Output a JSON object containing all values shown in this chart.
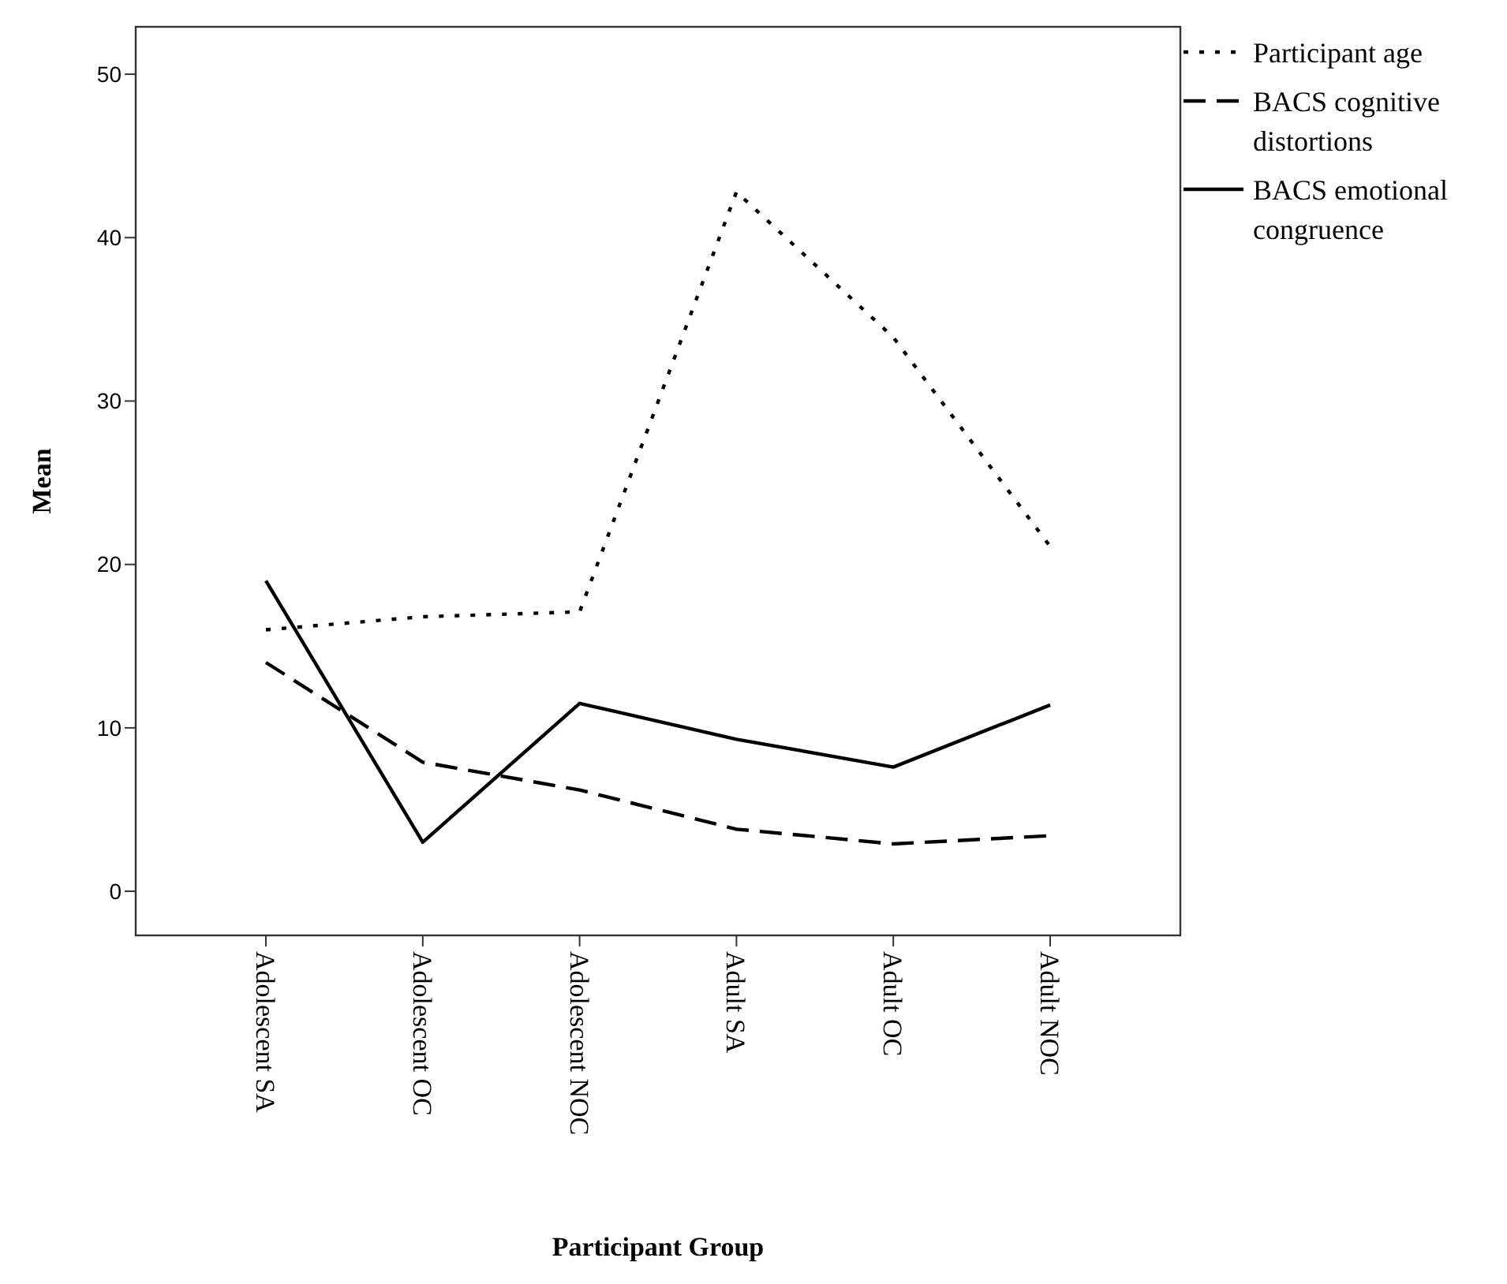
{
  "chart_data": {
    "type": "line",
    "xlabel": "Participant Group",
    "ylabel": "Mean",
    "categories": [
      "Adolescent SA",
      "Adolescent OC",
      "Adolescent NOC",
      "Adult SA",
      "Adult OC",
      "Adult NOC"
    ],
    "series": [
      {
        "name": "Participant age",
        "color": "#000000",
        "line_style": "dotted",
        "values": [
          16.0,
          16.8,
          17.1,
          42.8,
          33.9,
          21.1
        ]
      },
      {
        "name": "BACS cognitive distortions",
        "color": "#000000",
        "line_style": "dashed",
        "values": [
          14.0,
          7.9,
          6.2,
          3.8,
          2.9,
          3.4
        ]
      },
      {
        "name": "BACS emotional congruence",
        "color": "#000000",
        "line_style": "solid",
        "values": [
          19.0,
          3.0,
          11.5,
          9.3,
          7.6,
          11.4
        ]
      }
    ],
    "ylim": [
      -2.7,
      52.9
    ],
    "yticks": [
      0,
      10,
      20,
      30,
      40,
      50
    ],
    "grid": false,
    "legend": "top right",
    "marker": "none"
  }
}
